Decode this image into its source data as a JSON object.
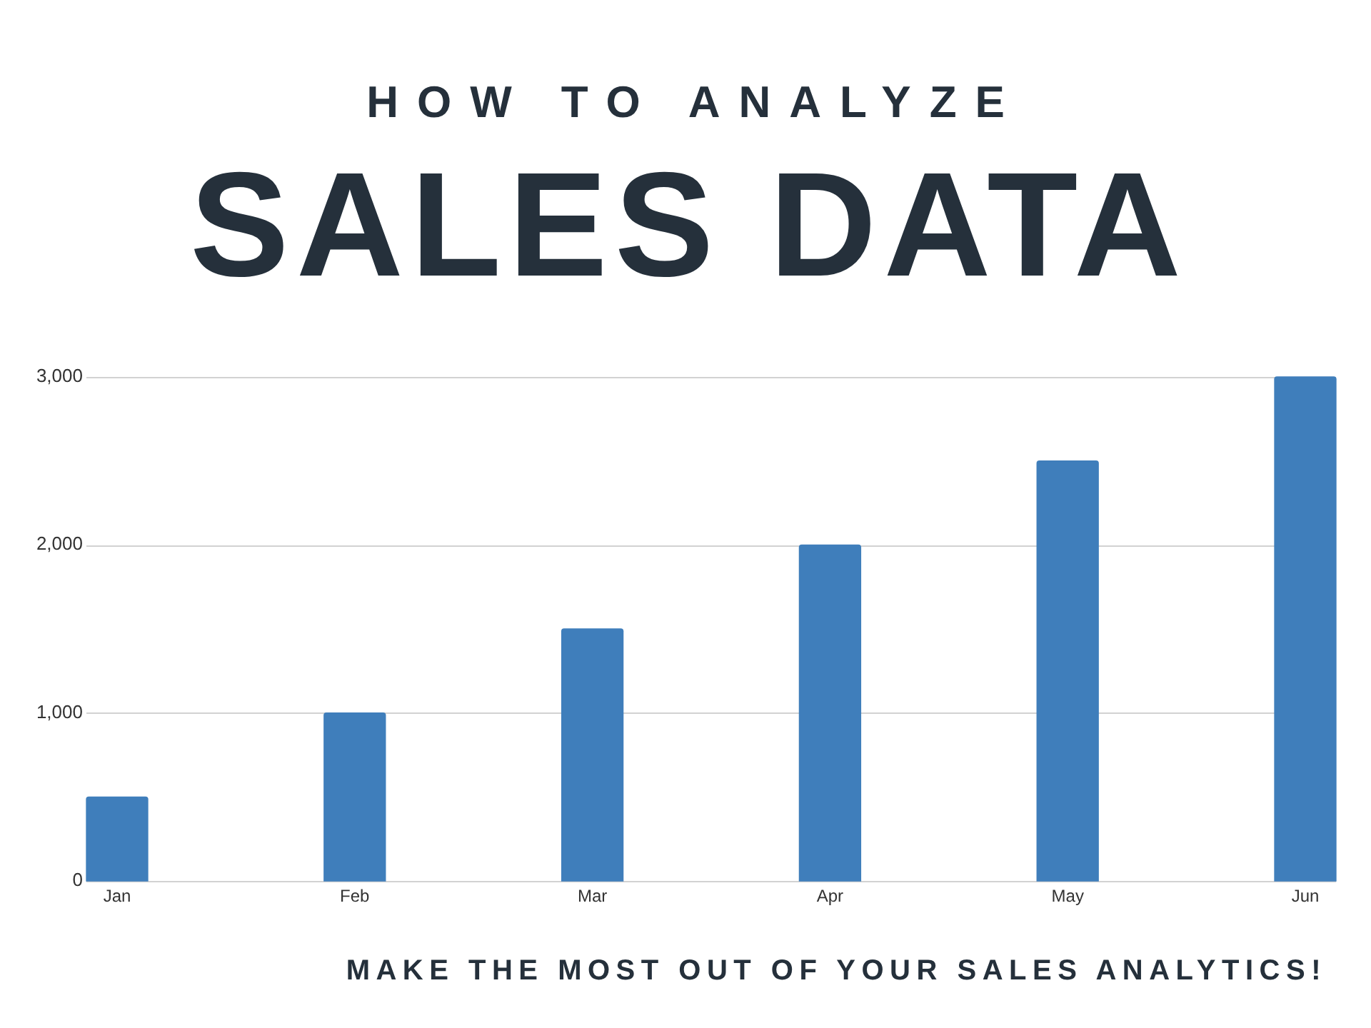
{
  "chart_data": {
    "type": "bar",
    "title": "HOW TO ANALYZE",
    "subtitle": "SALES DATA",
    "categories": [
      "Jan",
      "Feb",
      "Mar",
      "Apr",
      "May",
      "Jun"
    ],
    "values": [
      500,
      1000,
      1500,
      2000,
      2500,
      3000
    ],
    "color": "#3f7ebb",
    "ylim": [
      0,
      3000
    ],
    "yticks": [
      0,
      {
        "value": 1000,
        "label": "1,000"
      },
      {
        "value": 2000,
        "label": "2,000"
      },
      {
        "value": 3000,
        "label": "3,000"
      }
    ],
    "grid": "y",
    "annotations": [
      "MAKE THE MOST OUT OF YOUR SALES ANALYTICS!"
    ]
  }
}
